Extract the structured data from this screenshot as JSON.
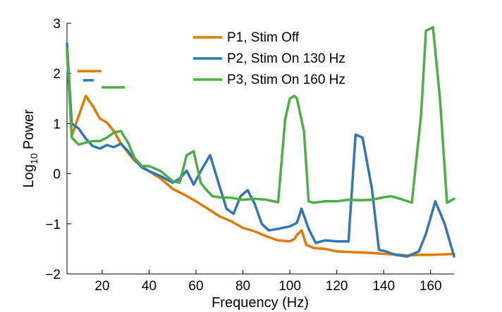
{
  "chart_data": {
    "type": "line",
    "xlabel": "Frequency (Hz)",
    "ylabel_main": "Log",
    "ylabel_sub": "10",
    "ylabel_rest": " Power",
    "xlim": [
      5,
      170
    ],
    "ylim": [
      -2,
      3
    ],
    "xticks": [
      20,
      40,
      60,
      80,
      100,
      120,
      140,
      160
    ],
    "yticks": [
      -2,
      -1,
      0,
      1,
      2,
      3
    ],
    "ytick_labels": [
      "−2",
      "−1",
      "0",
      "1",
      "2",
      "3"
    ],
    "legend_position": "top-center",
    "grid": false,
    "series": [
      {
        "name": "P1, Stim Off",
        "color": "#e07b00",
        "x": [
          5,
          7,
          10,
          13,
          16,
          19,
          22,
          25,
          28,
          31,
          34,
          37,
          40,
          45,
          50,
          55,
          60,
          65,
          70,
          75,
          80,
          85,
          90,
          95,
          100,
          102,
          103,
          105,
          107,
          110,
          115,
          120,
          125,
          130,
          135,
          140,
          145,
          150,
          155,
          160,
          165,
          170
        ],
        "y": [
          2.4,
          0.75,
          1.15,
          1.55,
          1.35,
          1.1,
          1.02,
          0.85,
          0.6,
          0.42,
          0.25,
          0.15,
          0.05,
          -0.1,
          -0.3,
          -0.42,
          -0.55,
          -0.7,
          -0.85,
          -0.95,
          -1.08,
          -1.15,
          -1.25,
          -1.33,
          -1.35,
          -1.3,
          -1.22,
          -1.13,
          -1.42,
          -1.48,
          -1.5,
          -1.55,
          -1.56,
          -1.57,
          -1.58,
          -1.6,
          -1.61,
          -1.63,
          -1.62,
          -1.62,
          -1.61,
          -1.6
        ]
      },
      {
        "name": "P2, Stim On 130 Hz",
        "color": "#2f77b8",
        "x": [
          5,
          7,
          10,
          13,
          16,
          19,
          22,
          25,
          28,
          31,
          34,
          37,
          40,
          45,
          50,
          53,
          56,
          59,
          62,
          66,
          70,
          73,
          76,
          79,
          82,
          85,
          88,
          91,
          95,
          100,
          103,
          105,
          108,
          111,
          115,
          120,
          125,
          128,
          131,
          135,
          138,
          141,
          145,
          150,
          155,
          158,
          162,
          166,
          170
        ],
        "y": [
          2.6,
          1.0,
          0.9,
          0.7,
          0.55,
          0.5,
          0.57,
          0.53,
          0.6,
          0.45,
          0.28,
          0.12,
          0.05,
          -0.05,
          -0.18,
          -0.1,
          0.06,
          -0.22,
          0.05,
          0.37,
          -0.25,
          -0.7,
          -0.8,
          -0.45,
          -0.33,
          -0.6,
          -1.0,
          -1.13,
          -1.1,
          -1.05,
          -0.98,
          -0.7,
          -1.1,
          -1.38,
          -1.33,
          -1.35,
          -1.35,
          0.78,
          0.72,
          -0.3,
          -1.52,
          -1.55,
          -1.62,
          -1.65,
          -1.55,
          -1.2,
          -0.55,
          -1.0,
          -1.65
        ]
      },
      {
        "name": "P3, Stim On 160 Hz",
        "color": "#4caf45",
        "x": [
          5,
          7,
          10,
          13,
          16,
          19,
          22,
          25,
          28,
          31,
          34,
          37,
          40,
          45,
          50,
          53,
          56,
          59,
          62,
          64,
          67,
          70,
          75,
          80,
          85,
          90,
          95,
          98,
          100,
          102,
          103,
          106,
          108,
          110,
          115,
          120,
          125,
          130,
          135,
          140,
          143,
          147,
          152,
          156,
          158,
          161,
          164,
          167,
          170
        ],
        "y": [
          2.5,
          0.72,
          0.58,
          0.62,
          0.65,
          0.65,
          0.72,
          0.82,
          0.85,
          0.62,
          0.3,
          0.15,
          0.15,
          0.05,
          -0.15,
          -0.18,
          0.37,
          0.45,
          -0.18,
          -0.3,
          -0.45,
          -0.47,
          -0.48,
          -0.52,
          -0.5,
          -0.52,
          -0.57,
          1.08,
          1.5,
          1.55,
          1.5,
          0.85,
          -0.55,
          -0.58,
          -0.55,
          -0.55,
          -0.52,
          -0.53,
          -0.52,
          -0.47,
          -0.45,
          -0.5,
          -0.58,
          1.2,
          2.85,
          2.92,
          1.5,
          -0.58,
          -0.5
        ]
      }
    ]
  }
}
